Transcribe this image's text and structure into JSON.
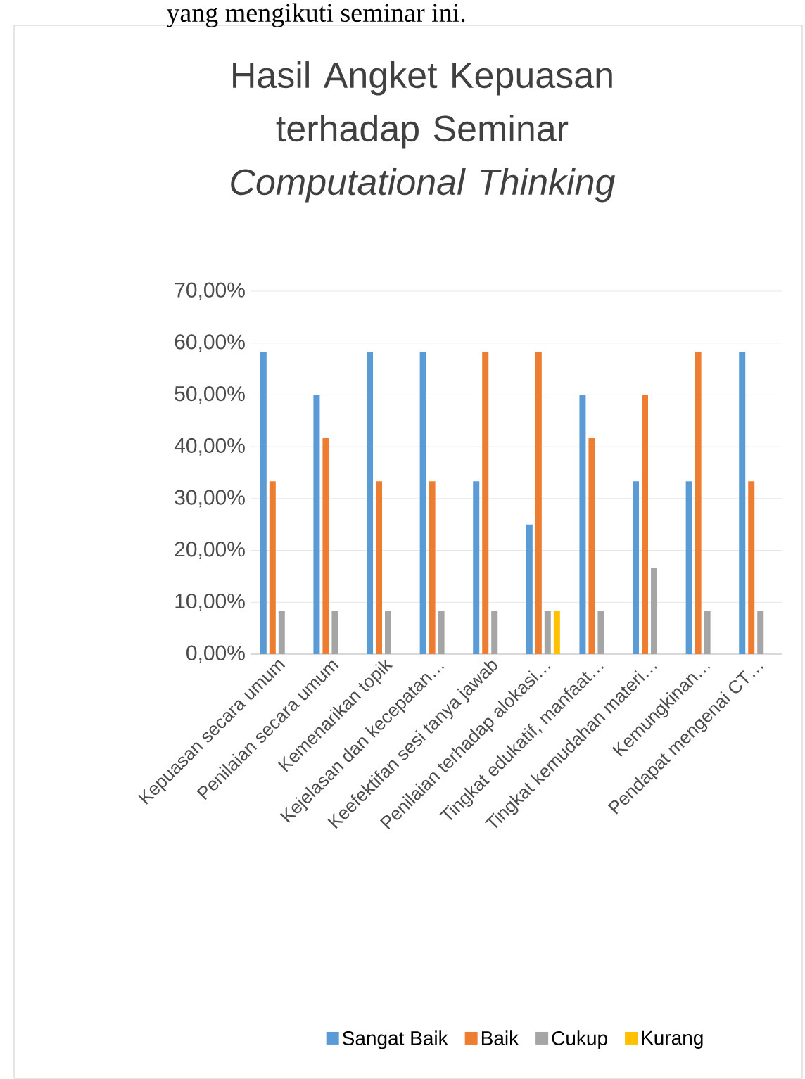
{
  "chart_data": {
    "type": "bar",
    "title": "Hasil Angket Kepuasan terhadap Seminar *Computational Thinking*",
    "annotations": [
      "yang mengikuti seminar ini."
    ],
    "categories": [
      "Kepuasan secara umum",
      "Penilaian secara umum",
      "Kemenarikan topik",
      "Kejelasan dan kecepatan…",
      "Keefektifan sesi tanya jawab",
      "Penilaian terhadap alokasi…",
      "Tingkat edukatif, manfaat…",
      "Tingkat kemudahan materi…",
      "Kemungkinan…",
      "Pendapat mengenai CT…"
    ],
    "series": [
      {
        "name": "Sangat Baik",
        "color": "#5b9bd5",
        "values": [
          58.33,
          50,
          58.33,
          58.33,
          33.33,
          25,
          50,
          33.33,
          33.33,
          58.33
        ]
      },
      {
        "name": "Baik",
        "color": "#ed7d31",
        "values": [
          33.33,
          41.67,
          33.33,
          33.33,
          58.33,
          58.33,
          41.67,
          50,
          58.33,
          33.33
        ]
      },
      {
        "name": "Cukup",
        "color": "#a5a5a5",
        "values": [
          8.33,
          8.33,
          8.33,
          8.33,
          8.33,
          8.33,
          8.33,
          16.67,
          8.33,
          8.33
        ]
      },
      {
        "name": "Kurang",
        "color": "#ffc000",
        "values": [
          0,
          0,
          0,
          0,
          0,
          8.33,
          0,
          0,
          0,
          0
        ]
      }
    ],
    "ylim": [
      0,
      70
    ],
    "yticks": [
      {
        "value": 0,
        "label": "0,00%"
      },
      {
        "value": 10,
        "label": "10,00%"
      },
      {
        "value": 20,
        "label": "20,00%"
      },
      {
        "value": 30,
        "label": "30,00%"
      },
      {
        "value": 40,
        "label": "40,00%"
      },
      {
        "value": 50,
        "label": "50,00%"
      },
      {
        "value": 60,
        "label": "60,00%"
      },
      {
        "value": 70,
        "label": "70,00%"
      }
    ],
    "grid": "y",
    "legend": "bottom"
  }
}
